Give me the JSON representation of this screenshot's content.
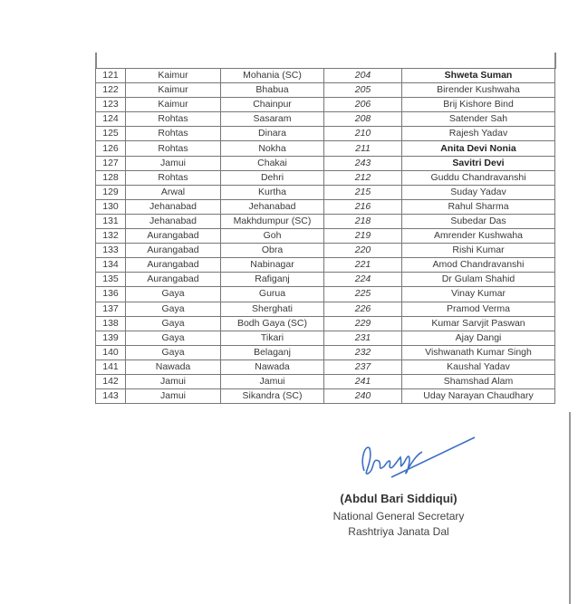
{
  "rows": [
    [
      "121",
      "Kaimur",
      "Mohania (SC)",
      "204",
      "Shweta Suman",
      true
    ],
    [
      "122",
      "Kaimur",
      "Bhabua",
      "205",
      "Birender Kushwaha",
      false
    ],
    [
      "123",
      "Kaimur",
      "Chainpur",
      "206",
      "Brij Kishore Bind",
      false
    ],
    [
      "124",
      "Rohtas",
      "Sasaram",
      "208",
      "Satender Sah",
      false
    ],
    [
      "125",
      "Rohtas",
      "Dinara",
      "210",
      "Rajesh Yadav",
      false
    ],
    [
      "126",
      "Rohtas",
      "Nokha",
      "211",
      "Anita Devi Nonia",
      true
    ],
    [
      "127",
      "Jamui",
      "Chakai",
      "243",
      "Savitri Devi",
      true
    ],
    [
      "128",
      "Rohtas",
      "Dehri",
      "212",
      "Guddu Chandravanshi",
      false
    ],
    [
      "129",
      "Arwal",
      "Kurtha",
      "215",
      "Suday Yadav",
      false
    ],
    [
      "130",
      "Jehanabad",
      "Jehanabad",
      "216",
      "Rahul Sharma",
      false
    ],
    [
      "131",
      "Jehanabad",
      "Makhdumpur (SC)",
      "218",
      "Subedar Das",
      false
    ],
    [
      "132",
      "Aurangabad",
      "Goh",
      "219",
      "Amrender Kushwaha",
      false
    ],
    [
      "133",
      "Aurangabad",
      "Obra",
      "220",
      "Rishi Kumar",
      false
    ],
    [
      "134",
      "Aurangabad",
      "Nabinagar",
      "221",
      "Amod Chandravanshi",
      false
    ],
    [
      "135",
      "Aurangabad",
      "Rafiganj",
      "224",
      "Dr Gulam Shahid",
      false
    ],
    [
      "136",
      "Gaya",
      "Gurua",
      "225",
      "Vinay Kumar",
      false
    ],
    [
      "137",
      "Gaya",
      "Sherghati",
      "226",
      "Pramod Verma",
      false
    ],
    [
      "138",
      "Gaya",
      "Bodh Gaya (SC)",
      "229",
      "Kumar Sarvjit Paswan",
      false
    ],
    [
      "139",
      "Gaya",
      "Tikari",
      "231",
      "Ajay Dangi",
      false
    ],
    [
      "140",
      "Gaya",
      "Belaganj",
      "232",
      "Vishwanath Kumar Singh",
      false
    ],
    [
      "141",
      "Nawada",
      "Nawada",
      "237",
      "Kaushal Yadav",
      false
    ],
    [
      "142",
      "Jamui",
      "Jamui",
      "241",
      "Shamshad Alam",
      false
    ],
    [
      "143",
      "Jamui",
      "Sikandra (SC)",
      "240",
      "Uday Narayan Chaudhary",
      false
    ]
  ],
  "signatory": {
    "name": "(Abdul Bari Siddiqui)",
    "title": "National General Secretary",
    "party": "Rashtriya Janata Dal",
    "signature": "Siddiqui"
  },
  "colors": {
    "signature_ink": "#3b6fc4"
  }
}
